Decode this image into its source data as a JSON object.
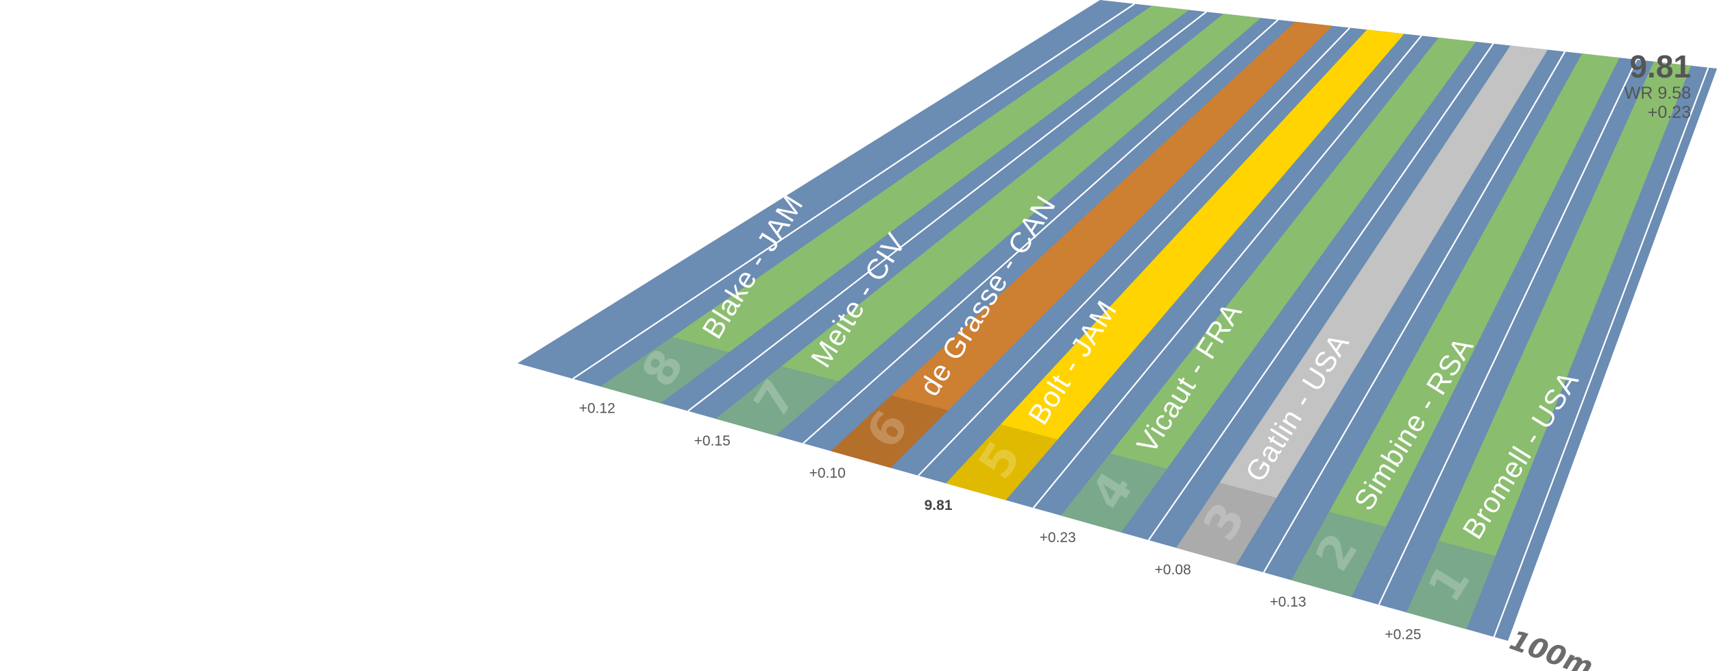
{
  "scoreboard": {
    "time": "9.81",
    "world_record": "WR 9.58",
    "diff": "+0.23"
  },
  "finish_label": "100m",
  "colors": {
    "track": "#6b8cb3",
    "lane": "#8bbd6f",
    "gold": "#ffd400",
    "silver": "#c3c3c3",
    "bronze": "#cd7f32",
    "lane_line": "#ffffff",
    "start_box": "#7aa88a"
  },
  "lanes": [
    {
      "number": "1",
      "name": "Bromell - USA",
      "result": "+0.25",
      "medal": "none"
    },
    {
      "number": "2",
      "name": "Simbine - RSA",
      "result": "+0.13",
      "medal": "none"
    },
    {
      "number": "3",
      "name": "Gatlin - USA",
      "result": "+0.08",
      "medal": "silver"
    },
    {
      "number": "4",
      "name": "Vicaut - FRA",
      "result": "+0.23",
      "medal": "none"
    },
    {
      "number": "5",
      "name": "Bolt - JAM",
      "result": "9.81",
      "medal": "gold"
    },
    {
      "number": "6",
      "name": "de Grasse - CAN",
      "result": "+0.10",
      "medal": "bronze"
    },
    {
      "number": "7",
      "name": "Meite - CIV",
      "result": "+0.15",
      "medal": "none"
    },
    {
      "number": "8",
      "name": "Blake - JAM",
      "result": "+0.12",
      "medal": "none"
    }
  ]
}
